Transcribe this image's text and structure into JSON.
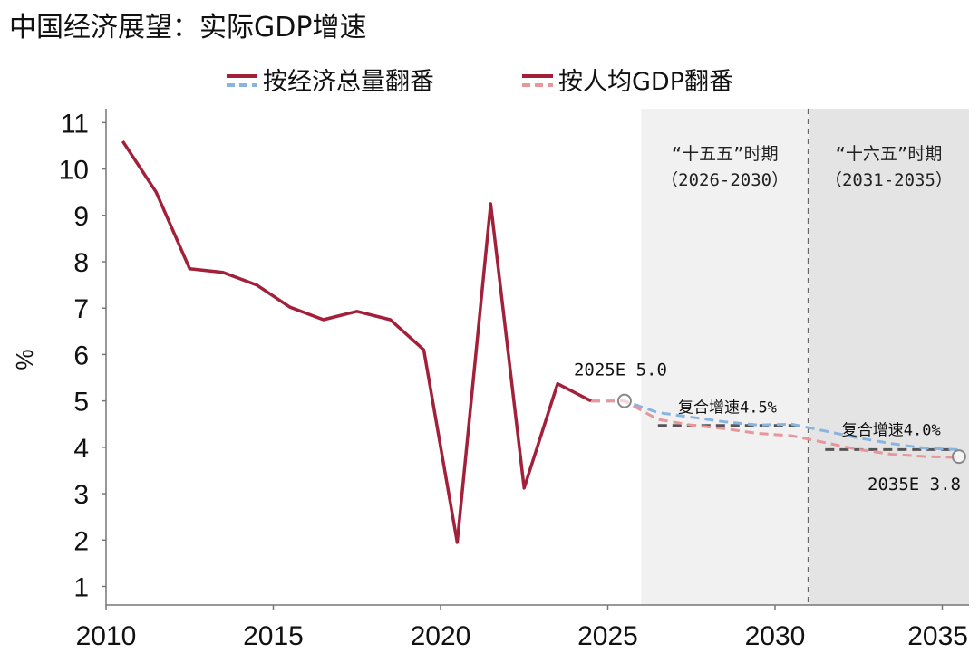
{
  "chart_data": {
    "type": "line",
    "title": "中国经济展望：实际GDP增速",
    "ylabel": "%",
    "xlabel": "",
    "xlim": [
      2010,
      2035.8
    ],
    "ylim": [
      0.6,
      11.3
    ],
    "xticks": [
      2010,
      2015,
      2020,
      2025,
      2030,
      2035
    ],
    "yticks": [
      1,
      2,
      3,
      4,
      5,
      6,
      7,
      8,
      9,
      10,
      11
    ],
    "grid": false,
    "legend_position": "top",
    "legend": [
      {
        "label": "按经济总量翻番",
        "colors": [
          "#a3203a",
          "#8ab4e0"
        ]
      },
      {
        "label": "按人均GDP翻番",
        "colors": [
          "#a3203a",
          "#e8959b"
        ]
      }
    ],
    "shaded_periods": [
      {
        "label_line1": "“十五五”时期",
        "label_line2": "（2026-2030）",
        "x_start": 2026,
        "x_end": 2031,
        "color": "#f1f1f1"
      },
      {
        "label_line1": "“十六五”时期",
        "label_line2": "（2031-2035）",
        "x_start": 2031,
        "x_end": 2035.8,
        "color": "#e4e4e5"
      }
    ],
    "divider_x": 2031,
    "series": [
      {
        "style": "solid",
        "color": "#a3203a",
        "x": [
          2010.5,
          2011.5,
          2012.5,
          2013.5,
          2014.5,
          2015.5,
          2016.5,
          2017.5,
          2018.5,
          2019.5,
          2020.5,
          2021.5,
          2022.5,
          2023.5,
          2024.5
        ],
        "values": [
          10.6,
          9.5,
          7.85,
          7.77,
          7.5,
          7.02,
          6.75,
          6.93,
          6.75,
          6.1,
          1.95,
          9.25,
          3.12,
          5.37,
          5.0
        ]
      },
      {
        "style": "dashed",
        "color": "#8ab4e0",
        "x": [
          2024.5,
          2025.5,
          2026.5,
          2027.5,
          2028.5,
          2029.5,
          2030.5,
          2031.5,
          2032.5,
          2033.5,
          2034.5,
          2035.5
        ],
        "values": [
          5.0,
          5.0,
          4.75,
          4.65,
          4.55,
          4.48,
          4.5,
          4.35,
          4.2,
          4.08,
          3.98,
          3.95
        ]
      },
      {
        "style": "dashed",
        "color": "#e8959b",
        "x": [
          2024.5,
          2025.5,
          2026.5,
          2027.5,
          2028.5,
          2029.5,
          2030.5,
          2031.5,
          2032.5,
          2033.5,
          2034.5,
          2035.5
        ],
        "values": [
          5.0,
          5.0,
          4.6,
          4.48,
          4.4,
          4.3,
          4.25,
          4.1,
          3.95,
          3.85,
          3.8,
          3.78
        ]
      },
      {
        "style": "dashed",
        "color": "#555555",
        "x": [
          2026.5,
          2030.7
        ],
        "values": [
          4.47,
          4.47
        ]
      },
      {
        "style": "dashed",
        "color": "#555555",
        "x": [
          2031.5,
          2035.3
        ],
        "values": [
          3.95,
          3.95
        ]
      }
    ],
    "markers": [
      {
        "x": 2025.5,
        "y": 5.0,
        "label": "2025E 5.0",
        "label_pos": "above"
      },
      {
        "x": 2035.5,
        "y": 3.8,
        "label": "2035E 3.8",
        "label_pos": "below"
      }
    ],
    "annotations": [
      {
        "text": "复合增速4.5%",
        "x": 2027.1,
        "y": 4.75
      },
      {
        "text": "复合增速4.0%",
        "x": 2032.0,
        "y": 4.26
      }
    ]
  }
}
